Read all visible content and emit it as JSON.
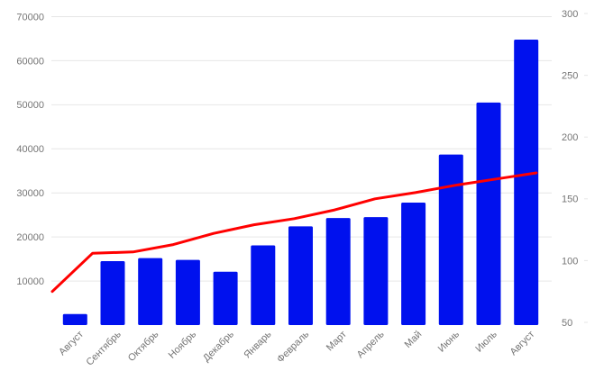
{
  "chart_data": {
    "type": "combo",
    "title": "",
    "legend": "none",
    "grid": true,
    "background": "#ffffff",
    "categories": [
      "Август",
      "Сентябрь",
      "Октябрь",
      "Ноябрь",
      "Декабрь",
      "Январь",
      "Февраль",
      "Март",
      "Апрель",
      "Май",
      "Июнь",
      "Июль",
      "Август"
    ],
    "series": [
      {
        "name": "bars-series",
        "type": "bar",
        "axis": "left",
        "color": "#0011ee",
        "values": [
          2500,
          14500,
          15200,
          14800,
          12100,
          18100,
          22400,
          24300,
          24500,
          27800,
          38700,
          50500,
          64800
        ]
      },
      {
        "name": "line-series",
        "type": "line",
        "axis": "right",
        "color": "#ff0000",
        "values": [
          75,
          106,
          107,
          113,
          122,
          129,
          134,
          141,
          150,
          155,
          161,
          166,
          171
        ]
      }
    ],
    "left_axis": {
      "min": 0,
      "max": 70000,
      "step": 10000,
      "ticks": [
        "10000",
        "20000",
        "30000",
        "40000",
        "50000",
        "60000",
        "70000"
      ]
    },
    "right_axis": {
      "min": 50,
      "max": 300,
      "step": 50,
      "ticks": [
        "50",
        "100",
        "150",
        "200",
        "250",
        "300"
      ]
    }
  },
  "colors": {
    "bar": "#0011ee",
    "line": "#ff0000",
    "gridline": "#e6e6e6",
    "axis_label": "#757575",
    "background": "#ffffff"
  }
}
